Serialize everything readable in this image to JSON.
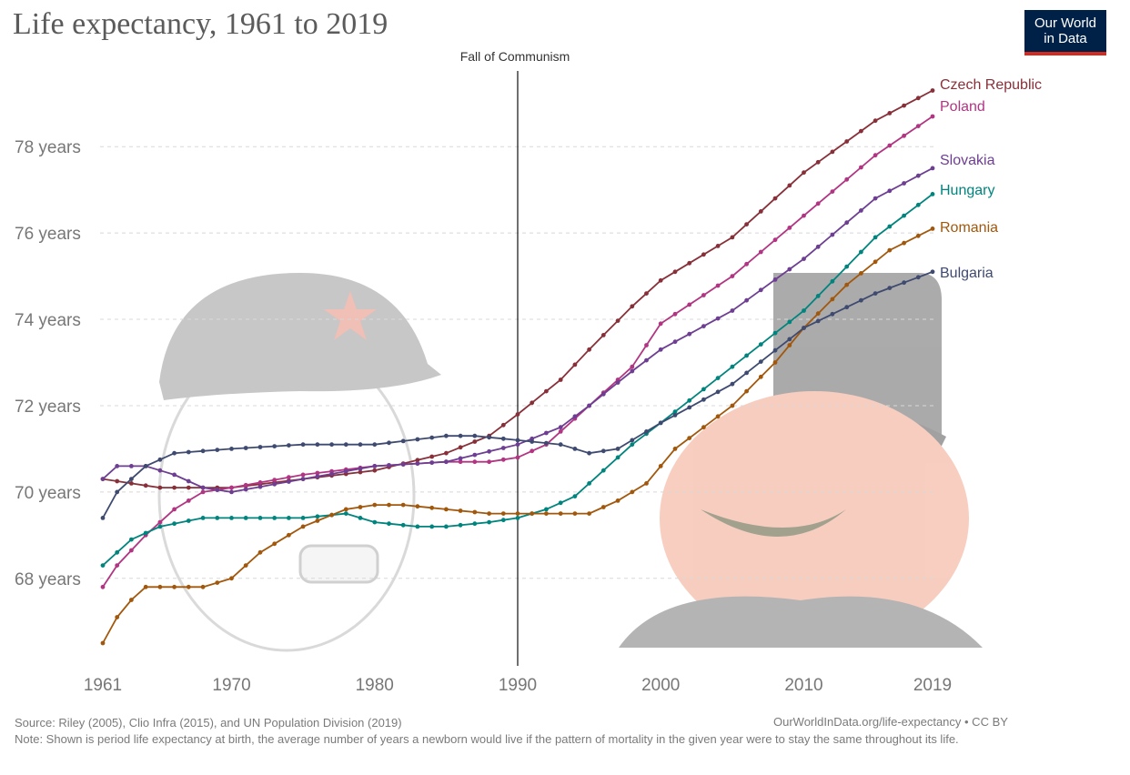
{
  "chart_data": {
    "type": "line",
    "title": "Life expectancy, 1961 to 2019",
    "logo": {
      "line1": "Our World",
      "line2": "in Data"
    },
    "annotation": {
      "label": "Fall of Communism",
      "x": 1990
    },
    "xlim": [
      1961,
      2019
    ],
    "ylim": [
      66.5,
      79.5
    ],
    "x_ticks": [
      1961,
      1970,
      1980,
      1990,
      2000,
      2010,
      2019
    ],
    "y_ticks": [
      {
        "value": 68,
        "label": "68 years"
      },
      {
        "value": 70,
        "label": "70 years"
      },
      {
        "value": 72,
        "label": "72 years"
      },
      {
        "value": 74,
        "label": "74 years"
      },
      {
        "value": 76,
        "label": "76 years"
      },
      {
        "value": 78,
        "label": "78 years"
      }
    ],
    "grid": true,
    "series": [
      {
        "name": "Czech Republic",
        "color": "#883039",
        "points": [
          [
            1961,
            70.3
          ],
          [
            1965,
            70.1
          ],
          [
            1970,
            70.1
          ],
          [
            1975,
            70.3
          ],
          [
            1980,
            70.5
          ],
          [
            1985,
            70.9
          ],
          [
            1988,
            71.3
          ],
          [
            1990,
            71.8
          ],
          [
            1993,
            72.6
          ],
          [
            1995,
            73.3
          ],
          [
            1998,
            74.3
          ],
          [
            2000,
            74.9
          ],
          [
            2005,
            75.9
          ],
          [
            2010,
            77.4
          ],
          [
            2015,
            78.6
          ],
          [
            2019,
            79.3
          ]
        ]
      },
      {
        "name": "Poland",
        "color": "#b13582",
        "points": [
          [
            1961,
            67.8
          ],
          [
            1962,
            68.3
          ],
          [
            1964,
            69.0
          ],
          [
            1966,
            69.6
          ],
          [
            1968,
            70.0
          ],
          [
            1970,
            70.1
          ],
          [
            1975,
            70.4
          ],
          [
            1980,
            70.6
          ],
          [
            1985,
            70.7
          ],
          [
            1988,
            70.7
          ],
          [
            1990,
            70.8
          ],
          [
            1992,
            71.1
          ],
          [
            1995,
            72.0
          ],
          [
            1998,
            72.9
          ],
          [
            2000,
            73.9
          ],
          [
            2005,
            75.0
          ],
          [
            2010,
            76.4
          ],
          [
            2015,
            77.8
          ],
          [
            2019,
            78.7
          ]
        ]
      },
      {
        "name": "Slovakia",
        "color": "#6d3e91",
        "points": [
          [
            1961,
            70.3
          ],
          [
            1962,
            70.6
          ],
          [
            1964,
            70.6
          ],
          [
            1966,
            70.4
          ],
          [
            1968,
            70.1
          ],
          [
            1970,
            70.0
          ],
          [
            1975,
            70.3
          ],
          [
            1980,
            70.6
          ],
          [
            1985,
            70.7
          ],
          [
            1990,
            71.1
          ],
          [
            1993,
            71.5
          ],
          [
            1995,
            72.0
          ],
          [
            1998,
            72.8
          ],
          [
            2000,
            73.3
          ],
          [
            2005,
            74.2
          ],
          [
            2010,
            75.4
          ],
          [
            2015,
            76.8
          ],
          [
            2019,
            77.5
          ]
        ]
      },
      {
        "name": "Hungary",
        "color": "#00847e",
        "points": [
          [
            1961,
            68.3
          ],
          [
            1963,
            68.9
          ],
          [
            1965,
            69.2
          ],
          [
            1968,
            69.4
          ],
          [
            1970,
            69.4
          ],
          [
            1975,
            69.4
          ],
          [
            1978,
            69.5
          ],
          [
            1980,
            69.3
          ],
          [
            1983,
            69.2
          ],
          [
            1985,
            69.2
          ],
          [
            1988,
            69.3
          ],
          [
            1990,
            69.4
          ],
          [
            1992,
            69.6
          ],
          [
            1994,
            69.9
          ],
          [
            1996,
            70.5
          ],
          [
            1998,
            71.1
          ],
          [
            2000,
            71.6
          ],
          [
            2005,
            72.9
          ],
          [
            2010,
            74.2
          ],
          [
            2015,
            75.9
          ],
          [
            2019,
            76.9
          ]
        ]
      },
      {
        "name": "Romania",
        "color": "#a2580c",
        "points": [
          [
            1961,
            66.5
          ],
          [
            1962,
            67.1
          ],
          [
            1963,
            67.5
          ],
          [
            1964,
            67.8
          ],
          [
            1966,
            67.8
          ],
          [
            1968,
            67.8
          ],
          [
            1970,
            68.0
          ],
          [
            1972,
            68.6
          ],
          [
            1975,
            69.2
          ],
          [
            1978,
            69.6
          ],
          [
            1980,
            69.7
          ],
          [
            1982,
            69.7
          ],
          [
            1985,
            69.6
          ],
          [
            1988,
            69.5
          ],
          [
            1990,
            69.5
          ],
          [
            1995,
            69.5
          ],
          [
            1997,
            69.8
          ],
          [
            1999,
            70.2
          ],
          [
            2001,
            71.0
          ],
          [
            2005,
            72.0
          ],
          [
            2008,
            73.0
          ],
          [
            2010,
            73.8
          ],
          [
            2013,
            74.8
          ],
          [
            2016,
            75.6
          ],
          [
            2019,
            76.1
          ]
        ]
      },
      {
        "name": "Bulgaria",
        "color": "#3e4a70",
        "points": [
          [
            1961,
            69.4
          ],
          [
            1962,
            70.0
          ],
          [
            1964,
            70.6
          ],
          [
            1966,
            70.9
          ],
          [
            1970,
            71.0
          ],
          [
            1975,
            71.1
          ],
          [
            1980,
            71.1
          ],
          [
            1985,
            71.3
          ],
          [
            1987,
            71.3
          ],
          [
            1990,
            71.2
          ],
          [
            1993,
            71.1
          ],
          [
            1995,
            70.9
          ],
          [
            1997,
            71.0
          ],
          [
            2000,
            71.6
          ],
          [
            2005,
            72.5
          ],
          [
            2010,
            73.8
          ],
          [
            2015,
            74.6
          ],
          [
            2019,
            75.1
          ]
        ]
      }
    ]
  },
  "footer": {
    "source": "Source: Riley (2005), Clio Infra (2015), and UN Population Division (2019)",
    "url": "OurWorldInData.org/life-expectancy • CC BY",
    "note": "Note: Shown is period life expectancy at birth, the average number of years a newborn would live if the pattern of mortality in the given year were to stay the same throughout its life."
  }
}
